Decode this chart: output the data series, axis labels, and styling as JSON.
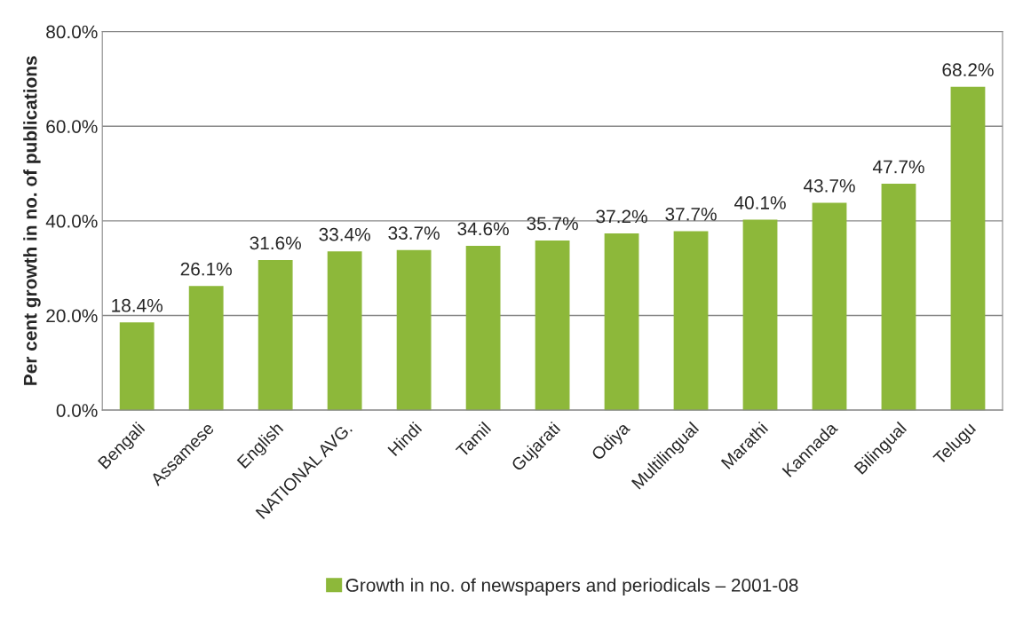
{
  "chart_data": {
    "type": "bar",
    "ylabel": "Per cent growth in no. of publications",
    "categories": [
      "Bengali",
      "Assamese",
      "English",
      "NATIONAL AVG.",
      "Hindi",
      "Tamil",
      "Gujarati",
      "Odiya",
      "Multilingual",
      "Marathi",
      "Kannada",
      "Bilingual",
      "Telugu"
    ],
    "series": [
      {
        "name": "Growth in no. of newspapers and periodicals – 2001-08",
        "color": "#8db83a",
        "values": [
          18.4,
          26.1,
          31.6,
          33.4,
          33.7,
          34.6,
          35.7,
          37.2,
          37.7,
          40.1,
          43.7,
          47.7,
          68.2
        ],
        "value_labels": [
          "18.4%",
          "26.1%",
          "31.6%",
          "33.4%",
          "33.7%",
          "34.6%",
          "35.7%",
          "37.2%",
          "37.7%",
          "40.1%",
          "43.7%",
          "47.7%",
          "68.2%"
        ]
      }
    ],
    "ylim": [
      0,
      80
    ],
    "yticks": [
      {
        "value": 0,
        "label": "0.0%"
      },
      {
        "value": 20,
        "label": "20.0%"
      },
      {
        "value": 40,
        "label": "40.0%"
      },
      {
        "value": 60,
        "label": "60.0%"
      },
      {
        "value": 80,
        "label": "80.0%"
      }
    ],
    "grid": "y",
    "legend": "bottom"
  }
}
